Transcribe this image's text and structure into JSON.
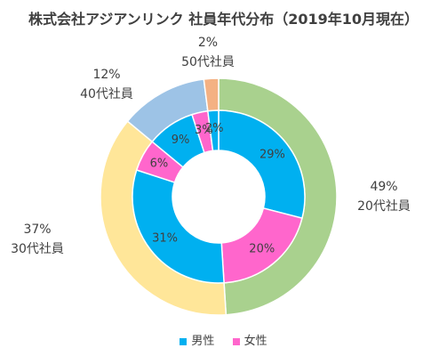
{
  "title": "株式会社アジアンリンク 社員年代分布（2019年10月現在）",
  "chart_data": {
    "type": "donut",
    "title": "株式会社アジアンリンク 社員年代分布（2019年10月現在）",
    "outer_ring": {
      "categories": [
        "20代社員",
        "30代社員",
        "40代社員",
        "50代社員"
      ],
      "values": [
        49,
        37,
        12,
        2
      ],
      "value_labels": [
        "49%",
        "37%",
        "12%",
        "2%"
      ],
      "colors": [
        "#a9d18e",
        "#ffe699",
        "#9dc3e6",
        "#f4b183"
      ]
    },
    "inner_ring": {
      "segments": [
        {
          "age": "20代社員",
          "gender": "男性",
          "value": 29,
          "label": "29%"
        },
        {
          "age": "20代社員",
          "gender": "女性",
          "value": 20,
          "label": "20%"
        },
        {
          "age": "30代社員",
          "gender": "男性",
          "value": 31,
          "label": "31%"
        },
        {
          "age": "30代社員",
          "gender": "女性",
          "value": 6,
          "label": "6%"
        },
        {
          "age": "40代社員",
          "gender": "男性",
          "value": 9,
          "label": "9%"
        },
        {
          "age": "40代社員",
          "gender": "女性",
          "value": 3,
          "label": "3%"
        },
        {
          "age": "50代社員",
          "gender": "男性",
          "value": 2,
          "label": "2%"
        },
        {
          "age": "50代社員",
          "gender": "女性",
          "value": 0,
          "label": ""
        }
      ]
    },
    "legend": [
      {
        "name": "男性",
        "color": "#00b0f0"
      },
      {
        "name": "女性",
        "color": "#ff66cc"
      }
    ],
    "legend_position": "bottom"
  }
}
